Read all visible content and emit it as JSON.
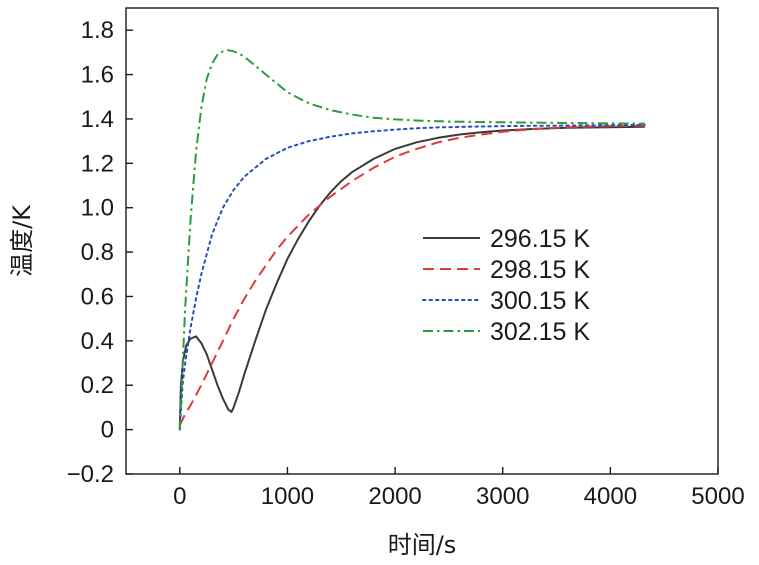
{
  "chart_data": {
    "type": "line",
    "title": "",
    "xlabel": "时间/s",
    "ylabel": "温度/K",
    "xlim": [
      -500,
      5000
    ],
    "ylim": [
      -0.2,
      1.9
    ],
    "xticks": [
      0,
      1000,
      2000,
      3000,
      4000,
      5000
    ],
    "xtick_labels": [
      "0",
      "1000",
      "2000",
      "3000",
      "4000",
      "5000"
    ],
    "yticks": [
      -0.2,
      0,
      0.2,
      0.4,
      0.6,
      0.8,
      1.0,
      1.2,
      1.4,
      1.6,
      1.8
    ],
    "ytick_labels": [
      "−0.2",
      "0",
      "0.2",
      "0.4",
      "0.6",
      "0.8",
      "1.0",
      "1.2",
      "1.4",
      "1.6",
      "1.8"
    ],
    "grid": false,
    "legend_position": "center-right",
    "series": [
      {
        "name": "296.15 K",
        "color": "#3a3a3a",
        "dash": "solid",
        "x": [
          0,
          10,
          30,
          60,
          100,
          150,
          200,
          250,
          300,
          350,
          400,
          450,
          480,
          500,
          550,
          600,
          700,
          800,
          900,
          1000,
          1100,
          1200,
          1300,
          1400,
          1500,
          1600,
          1800,
          2000,
          2200,
          2400,
          2600,
          2800,
          3000,
          3300,
          3600,
          4000,
          4320
        ],
        "y": [
          0.0,
          0.2,
          0.31,
          0.38,
          0.41,
          0.42,
          0.39,
          0.34,
          0.27,
          0.2,
          0.14,
          0.09,
          0.08,
          0.1,
          0.17,
          0.25,
          0.4,
          0.54,
          0.66,
          0.77,
          0.86,
          0.94,
          1.01,
          1.07,
          1.12,
          1.16,
          1.22,
          1.265,
          1.295,
          1.315,
          1.33,
          1.34,
          1.348,
          1.355,
          1.36,
          1.363,
          1.365
        ]
      },
      {
        "name": "298.15 K",
        "color": "#e03a3a",
        "dash": "dashed",
        "x": [
          0,
          50,
          100,
          200,
          300,
          400,
          500,
          600,
          700,
          800,
          900,
          1000,
          1200,
          1400,
          1600,
          1800,
          2000,
          2200,
          2400,
          2600,
          2800,
          3000,
          3300,
          3600,
          4000,
          4320
        ],
        "y": [
          0.02,
          0.07,
          0.11,
          0.2,
          0.3,
          0.4,
          0.5,
          0.59,
          0.67,
          0.74,
          0.81,
          0.87,
          0.97,
          1.05,
          1.12,
          1.18,
          1.23,
          1.265,
          1.295,
          1.315,
          1.33,
          1.342,
          1.355,
          1.363,
          1.368,
          1.37
        ]
      },
      {
        "name": "300.15 K",
        "color": "#2b4fb8",
        "dash": "dotted",
        "x": [
          0,
          25,
          50,
          100,
          150,
          200,
          300,
          400,
          500,
          600,
          700,
          800,
          1000,
          1200,
          1400,
          1600,
          1800,
          2000,
          2200,
          2400,
          2600,
          2800,
          3000,
          3500,
          4000,
          4320
        ],
        "y": [
          0.0,
          0.2,
          0.3,
          0.46,
          0.59,
          0.7,
          0.88,
          1.0,
          1.08,
          1.14,
          1.18,
          1.22,
          1.27,
          1.3,
          1.32,
          1.335,
          1.345,
          1.352,
          1.358,
          1.362,
          1.364,
          1.366,
          1.368,
          1.37,
          1.372,
          1.373
        ]
      },
      {
        "name": "302.15 K",
        "color": "#2e9a3e",
        "dash": "dashdot",
        "x": [
          0,
          25,
          50,
          100,
          150,
          200,
          250,
          300,
          350,
          400,
          450,
          500,
          550,
          600,
          700,
          800,
          900,
          1000,
          1200,
          1400,
          1600,
          1800,
          2000,
          2200,
          2500,
          3000,
          3500,
          4000,
          4320
        ],
        "y": [
          0.0,
          0.28,
          0.55,
          0.95,
          1.25,
          1.45,
          1.58,
          1.65,
          1.69,
          1.705,
          1.71,
          1.705,
          1.695,
          1.68,
          1.64,
          1.6,
          1.56,
          1.52,
          1.47,
          1.44,
          1.42,
          1.405,
          1.398,
          1.393,
          1.388,
          1.385,
          1.382,
          1.38,
          1.379
        ]
      }
    ]
  }
}
